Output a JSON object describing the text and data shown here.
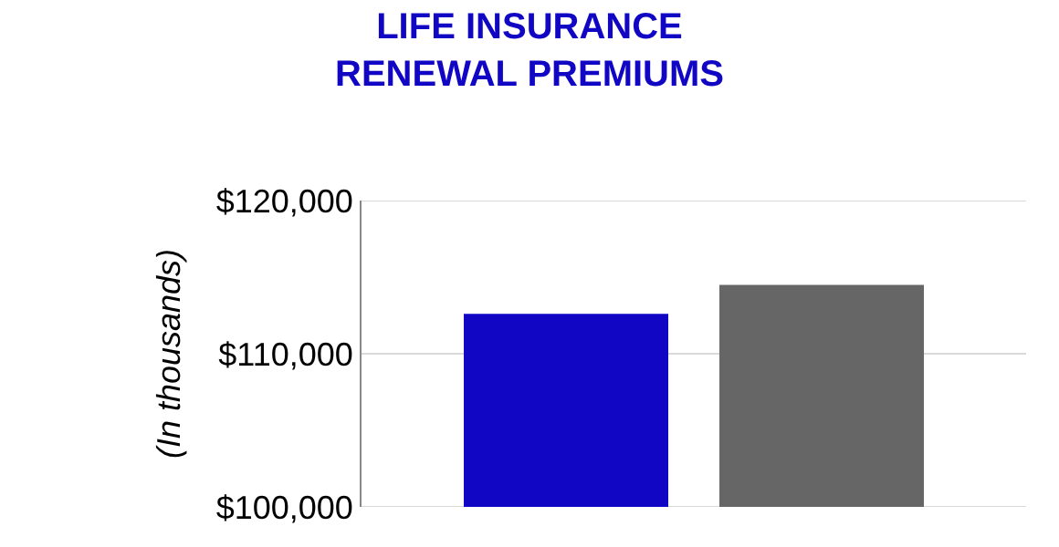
{
  "chart_data": {
    "type": "bar",
    "title": "LIFE INSURANCE\nRENEWAL PREMIUMS",
    "ylabel": "(In thousands)",
    "categories": [
      null,
      null
    ],
    "values": [
      112600,
      114500
    ],
    "colors": [
      "#1006c4",
      "#666666"
    ],
    "ylim": [
      100000,
      120000
    ],
    "yticks": [
      {
        "value": 100000,
        "label": "$100,000"
      },
      {
        "value": 110000,
        "label": "$110,000"
      },
      {
        "value": 120000,
        "label": "$120,000"
      }
    ],
    "grid": "y"
  }
}
